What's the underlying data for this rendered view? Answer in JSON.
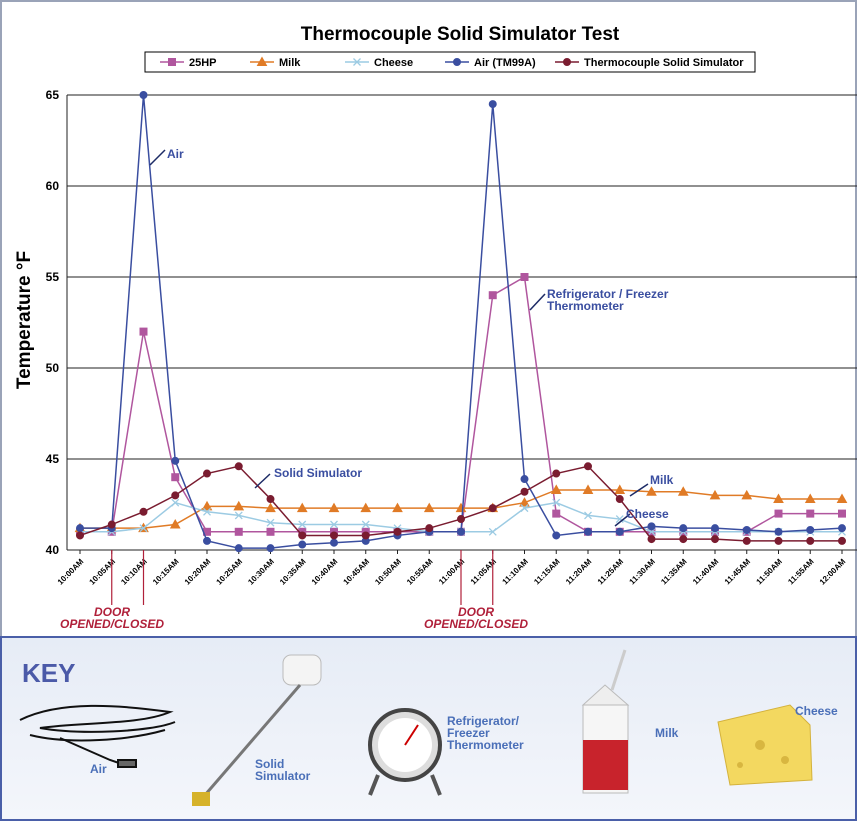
{
  "chart_data": {
    "type": "line",
    "title": "Thermocouple Solid Simulator Test",
    "y_label": "Temperature °F",
    "categories": [
      "10:00AM",
      "10:05AM",
      "10:10AM",
      "10:15AM",
      "10:20AM",
      "10:25AM",
      "10:30AM",
      "10:35AM",
      "10:40AM",
      "10:45AM",
      "10:50AM",
      "10:55AM",
      "11:00AM",
      "11:05AM",
      "11:10AM",
      "11:15AM",
      "11:20AM",
      "11:25AM",
      "11:30AM",
      "11:35AM",
      "11:40AM",
      "11:45AM",
      "11:50AM",
      "11:55AM",
      "12:00AM"
    ],
    "ylim": [
      40,
      65
    ],
    "yticks": [
      40,
      45,
      50,
      55,
      60,
      65
    ],
    "grid": true,
    "series": [
      {
        "name": "25HP",
        "color": "#b0569e",
        "marker": "square",
        "values": [
          41.0,
          41.0,
          52,
          44,
          41.0,
          41.0,
          41.0,
          41.0,
          41.0,
          41.0,
          41.0,
          41.0,
          41.0,
          54,
          55,
          42,
          41.0,
          41.0,
          41.0,
          41.0,
          41.0,
          41.0,
          42,
          42,
          42
        ]
      },
      {
        "name": "Milk",
        "color": "#e07b26",
        "marker": "triangle",
        "values": [
          41.2,
          41.2,
          41.2,
          41.4,
          42.4,
          42.4,
          42.3,
          42.3,
          42.3,
          42.3,
          42.3,
          42.3,
          42.3,
          42.3,
          42.6,
          43.3,
          43.3,
          43.3,
          43.2,
          43.2,
          43.0,
          43.0,
          42.8,
          42.8,
          42.8
        ]
      },
      {
        "name": "Cheese",
        "color": "#9ccbe3",
        "marker": "x",
        "values": [
          41.0,
          41.0,
          41.2,
          42.6,
          42.1,
          41.9,
          41.5,
          41.4,
          41.4,
          41.4,
          41.2,
          41.0,
          41.0,
          41.0,
          42.3,
          42.6,
          41.9,
          41.7,
          41.0,
          41.0,
          41.0,
          41.0,
          41.0,
          41.0,
          41.0
        ]
      },
      {
        "name": "Air (TM99A)",
        "color": "#3a4ea0",
        "marker": "circle",
        "values": [
          41.2,
          41.2,
          65,
          44.9,
          40.5,
          40.1,
          40.1,
          40.3,
          40.4,
          40.5,
          40.8,
          41.0,
          41.0,
          64.5,
          43.9,
          40.8,
          41.0,
          41.0,
          41.3,
          41.2,
          41.2,
          41.1,
          41.0,
          41.1,
          41.2
        ]
      },
      {
        "name": "Thermocouple Solid Simulator",
        "color": "#7a1c30",
        "marker": "circle",
        "values": [
          40.8,
          41.4,
          42.1,
          43.0,
          44.2,
          44.6,
          42.8,
          40.8,
          40.8,
          40.8,
          41.0,
          41.2,
          41.7,
          42.3,
          43.2,
          44.2,
          44.6,
          42.8,
          40.6,
          40.6,
          40.6,
          40.5,
          40.5,
          40.5,
          40.5
        ]
      }
    ],
    "annotations": [
      [
        "Air"
      ],
      [
        "Solid Simulator"
      ],
      [
        "Refrigerator / Freezer",
        "Thermometer"
      ],
      [
        "Milk"
      ],
      [
        "Cheese"
      ],
      [
        "DOOR",
        "OPENED/CLOSED"
      ],
      [
        "DOOR",
        "OPENED/CLOSED"
      ]
    ]
  },
  "key": {
    "title": "KEY",
    "items": [
      [
        "Air"
      ],
      [
        "Solid",
        "Simulator"
      ],
      [
        "Refrigerator/",
        "Freezer",
        "Thermometer"
      ],
      [
        "Milk"
      ],
      [
        "Cheese"
      ]
    ]
  }
}
